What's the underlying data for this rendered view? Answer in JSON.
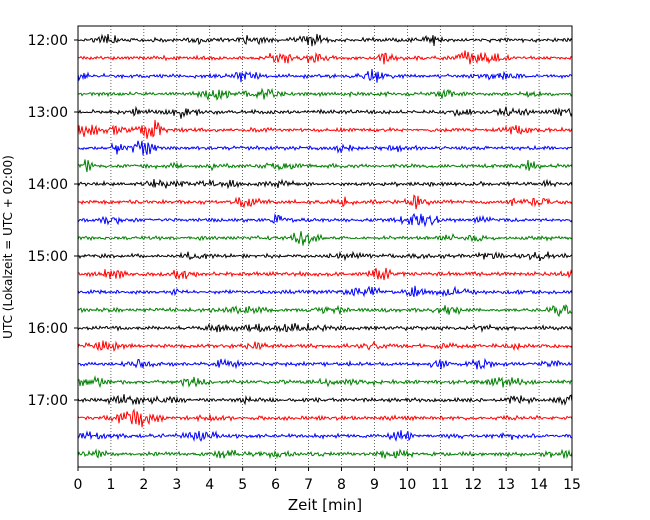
{
  "chart_data": {
    "type": "line",
    "title": "",
    "xlabel": "Zeit  [min]",
    "ylabel": "UTC (Lokalzeit = UTC + 02:00)",
    "xlim": [
      0,
      15
    ],
    "x_ticks": [
      "0",
      "1",
      "2",
      "3",
      "4",
      "5",
      "6",
      "7",
      "8",
      "9",
      "10",
      "11",
      "12",
      "13",
      "14",
      "15"
    ],
    "y_ticks": [
      "12:00",
      "13:00",
      "14:00",
      "15:00",
      "16:00",
      "17:00"
    ],
    "grid": "vertical dotted at each minute",
    "trace_interval_minutes": 15,
    "trace_colors": [
      "#000000",
      "#ff0000",
      "#0000ff",
      "#008000"
    ],
    "series": [
      {
        "start": "12:00"
      },
      {
        "start": "12:15"
      },
      {
        "start": "12:30"
      },
      {
        "start": "12:45"
      },
      {
        "start": "13:00"
      },
      {
        "start": "13:15"
      },
      {
        "start": "13:30"
      },
      {
        "start": "13:45"
      },
      {
        "start": "14:00"
      },
      {
        "start": "14:15"
      },
      {
        "start": "14:30"
      },
      {
        "start": "14:45"
      },
      {
        "start": "15:00"
      },
      {
        "start": "15:15"
      },
      {
        "start": "15:30"
      },
      {
        "start": "15:45"
      },
      {
        "start": "16:00"
      },
      {
        "start": "16:15"
      },
      {
        "start": "16:30"
      },
      {
        "start": "16:45"
      },
      {
        "start": "17:00"
      },
      {
        "start": "17:15"
      },
      {
        "start": "17:30"
      },
      {
        "start": "17:45"
      }
    ]
  }
}
